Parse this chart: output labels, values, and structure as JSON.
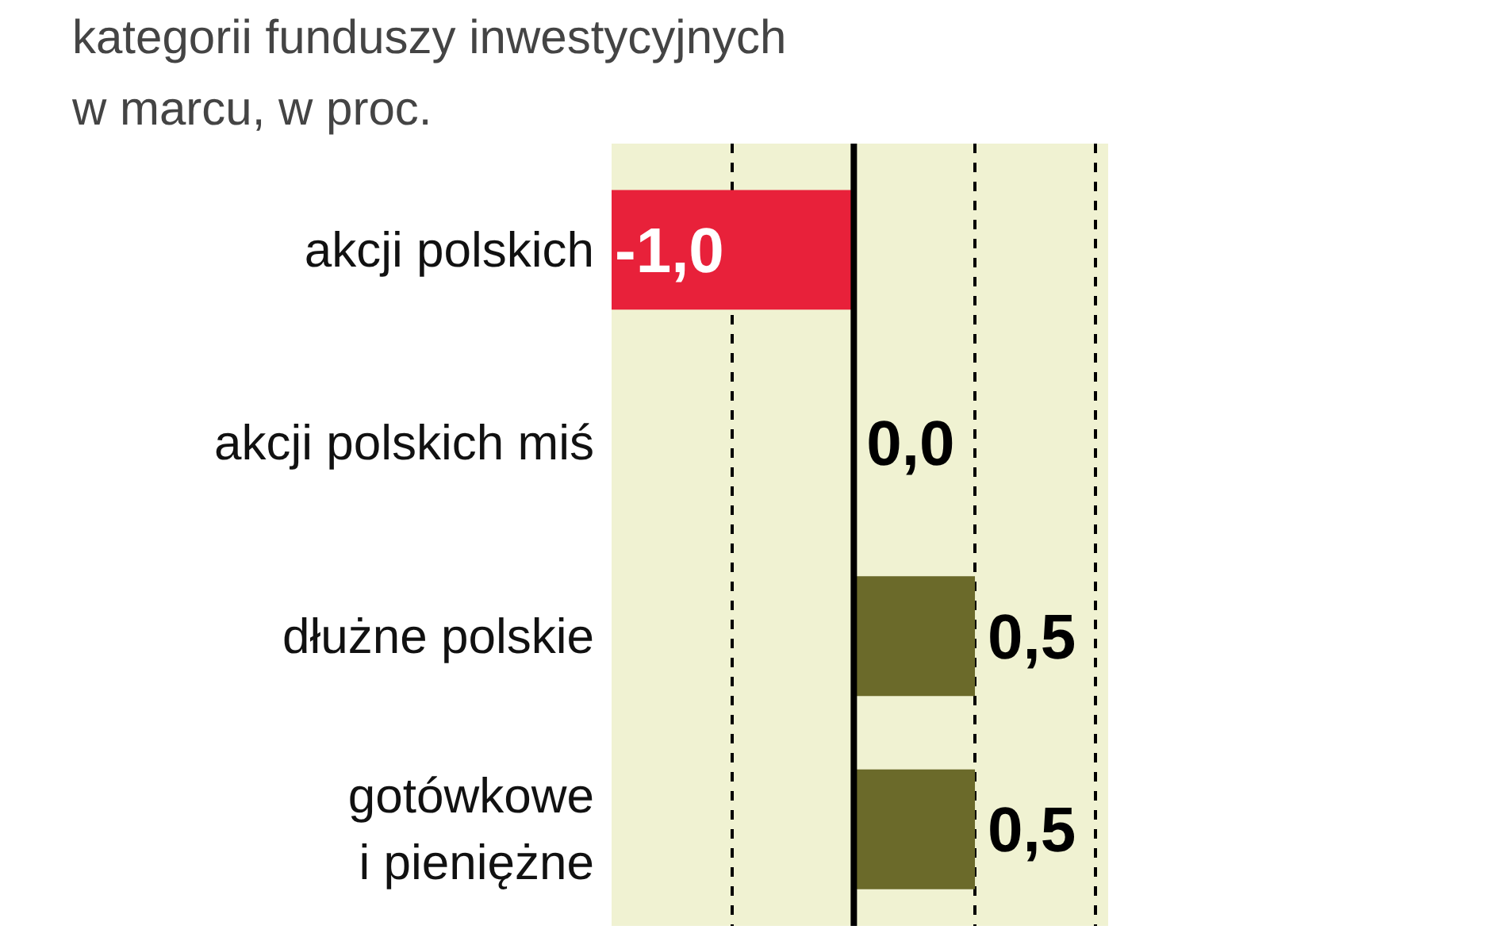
{
  "chart_data": {
    "type": "bar",
    "orientation": "horizontal",
    "title": "kategorii funduszy inwestycyjnych",
    "subtitle": "w marcu, w proc.",
    "categories": [
      "akcji polskich",
      "akcji polskich miś",
      "dłużne polskie",
      "gotówkowe\ni pieniężne"
    ],
    "values": [
      -1.0,
      0.0,
      0.5,
      0.5
    ],
    "colors": [
      "#e8213a",
      "#6b6a2a",
      "#6b6a2a",
      "#6b6a2a"
    ],
    "value_labels": [
      "-1,0",
      "0,0",
      "0,5",
      "0,5"
    ],
    "xlim": [
      -1.0,
      1.05
    ],
    "xticks": [
      {
        "value": -0.5,
        "label": null
      },
      {
        "value": 0.5,
        "label": null
      },
      {
        "value": 1.0,
        "label": null
      }
    ],
    "ref_lines": [
      {
        "axis": "x",
        "value": 0,
        "color": "#000000",
        "line_style": "solid"
      }
    ],
    "grid": "x",
    "tick_labels": "y"
  }
}
